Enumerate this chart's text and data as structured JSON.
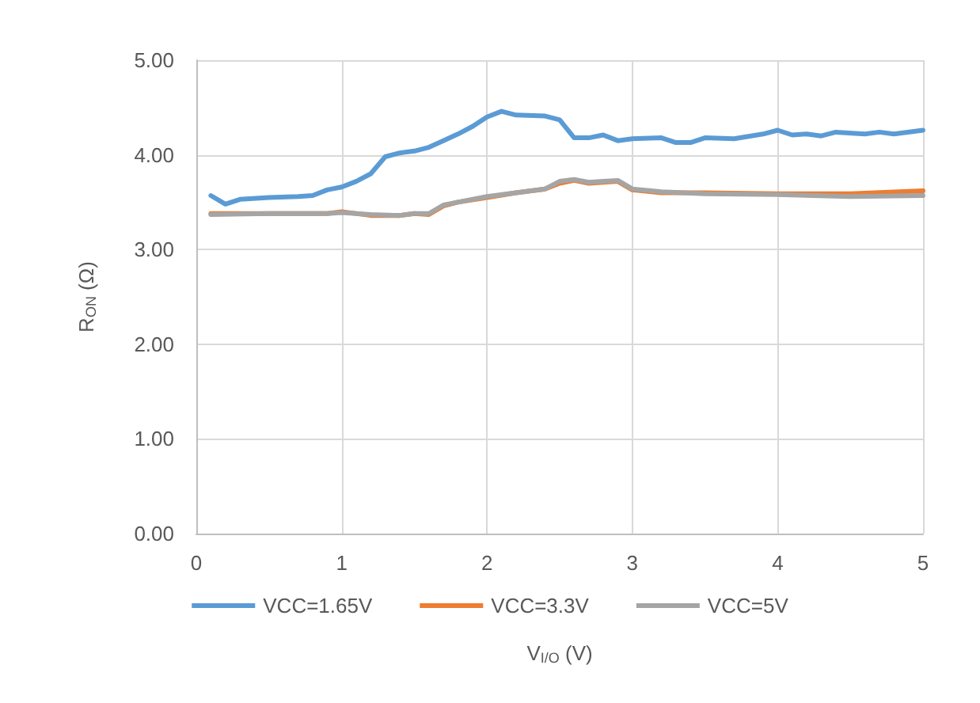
{
  "chart_data": {
    "type": "line",
    "xlabel": "V$_{I/O}$ (V)",
    "ylabel": "R$_{ON}$ (Ω)",
    "xlim": [
      0,
      5
    ],
    "xticks": [
      0,
      1,
      2,
      3,
      4,
      5
    ],
    "ylim": [
      0,
      5
    ],
    "yticks": [
      {
        "value": 0,
        "label": "0.00"
      },
      {
        "value": 1,
        "label": "1.00"
      },
      {
        "value": 2,
        "label": "2.00"
      },
      {
        "value": 3,
        "label": "3.00"
      },
      {
        "value": 4,
        "label": "4.00"
      },
      {
        "value": 5,
        "label": "5.00"
      }
    ],
    "grid": true,
    "legend": "bottom",
    "marker": "none",
    "line_style": "solid",
    "series": [
      {
        "name": "VCC=1.65V",
        "color": "#5b9bd5",
        "x": [
          0.1,
          0.2,
          0.3,
          0.5,
          0.7,
          0.8,
          0.9,
          1.0,
          1.1,
          1.2,
          1.3,
          1.4,
          1.5,
          1.6,
          1.7,
          1.8,
          1.9,
          2.0,
          2.1,
          2.2,
          2.4,
          2.5,
          2.6,
          2.7,
          2.8,
          2.9,
          3.0,
          3.2,
          3.3,
          3.4,
          3.5,
          3.7,
          3.9,
          4.0,
          4.1,
          4.2,
          4.3,
          4.4,
          4.6,
          4.7,
          4.8,
          5.0
        ],
        "values": [
          3.57,
          3.48,
          3.53,
          3.55,
          3.56,
          3.57,
          3.63,
          3.66,
          3.72,
          3.8,
          3.98,
          4.02,
          4.04,
          4.08,
          4.15,
          4.22,
          4.3,
          4.4,
          4.46,
          4.42,
          4.41,
          4.37,
          4.18,
          4.18,
          4.21,
          4.15,
          4.17,
          4.18,
          4.13,
          4.13,
          4.18,
          4.17,
          4.22,
          4.26,
          4.21,
          4.22,
          4.2,
          4.24,
          4.22,
          4.24,
          4.22,
          4.26
        ]
      },
      {
        "name": "VCC=3.3V",
        "color": "#ed7d31",
        "x": [
          0.1,
          0.5,
          0.9,
          1.0,
          1.2,
          1.4,
          1.5,
          1.6,
          1.7,
          1.8,
          2.0,
          2.2,
          2.4,
          2.5,
          2.6,
          2.7,
          2.8,
          2.9,
          3.0,
          3.2,
          3.5,
          4.0,
          4.5,
          5.0
        ],
        "values": [
          3.38,
          3.38,
          3.38,
          3.4,
          3.36,
          3.36,
          3.38,
          3.37,
          3.46,
          3.5,
          3.55,
          3.6,
          3.64,
          3.7,
          3.73,
          3.7,
          3.71,
          3.72,
          3.63,
          3.6,
          3.6,
          3.59,
          3.59,
          3.62
        ]
      },
      {
        "name": "VCC=5V",
        "color": "#a5a5a5",
        "x": [
          0.1,
          0.5,
          0.9,
          1.0,
          1.2,
          1.4,
          1.5,
          1.6,
          1.7,
          1.8,
          2.0,
          2.2,
          2.4,
          2.5,
          2.6,
          2.7,
          2.8,
          2.9,
          3.0,
          3.2,
          3.5,
          4.0,
          4.5,
          5.0
        ],
        "values": [
          3.37,
          3.38,
          3.38,
          3.39,
          3.37,
          3.36,
          3.38,
          3.38,
          3.47,
          3.5,
          3.56,
          3.6,
          3.64,
          3.72,
          3.74,
          3.71,
          3.72,
          3.73,
          3.64,
          3.61,
          3.59,
          3.58,
          3.56,
          3.57
        ]
      }
    ]
  }
}
